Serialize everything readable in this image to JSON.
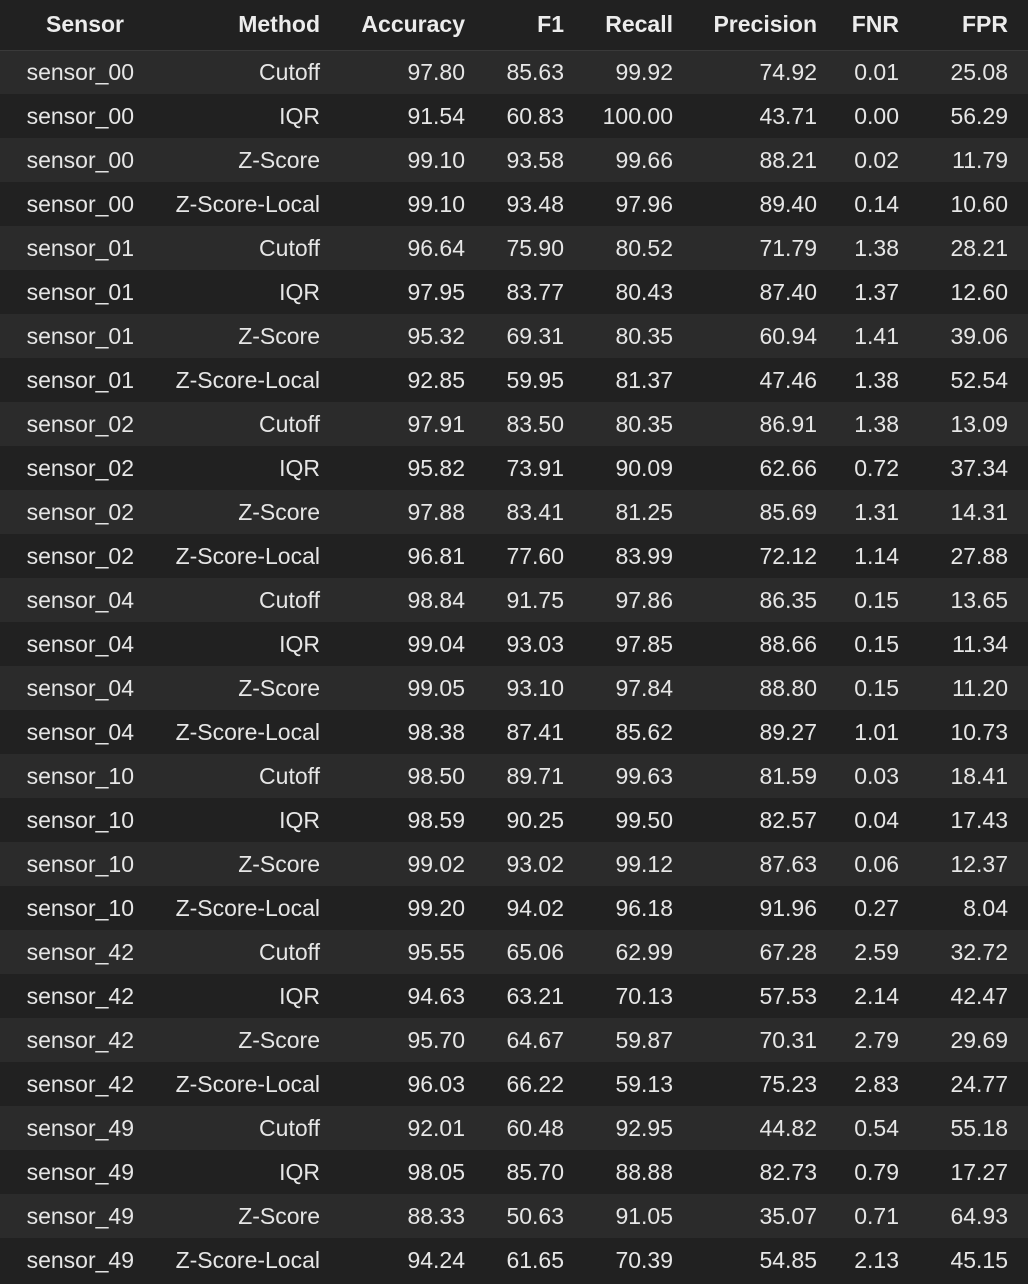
{
  "table": {
    "columns": [
      "Sensor",
      "Method",
      "Accuracy",
      "F1",
      "Recall",
      "Precision",
      "FNR",
      "FPR"
    ],
    "rows": [
      [
        "sensor_00",
        "Cutoff",
        "97.80",
        "85.63",
        "99.92",
        "74.92",
        "0.01",
        "25.08"
      ],
      [
        "sensor_00",
        "IQR",
        "91.54",
        "60.83",
        "100.00",
        "43.71",
        "0.00",
        "56.29"
      ],
      [
        "sensor_00",
        "Z-Score",
        "99.10",
        "93.58",
        "99.66",
        "88.21",
        "0.02",
        "11.79"
      ],
      [
        "sensor_00",
        "Z-Score-Local",
        "99.10",
        "93.48",
        "97.96",
        "89.40",
        "0.14",
        "10.60"
      ],
      [
        "sensor_01",
        "Cutoff",
        "96.64",
        "75.90",
        "80.52",
        "71.79",
        "1.38",
        "28.21"
      ],
      [
        "sensor_01",
        "IQR",
        "97.95",
        "83.77",
        "80.43",
        "87.40",
        "1.37",
        "12.60"
      ],
      [
        "sensor_01",
        "Z-Score",
        "95.32",
        "69.31",
        "80.35",
        "60.94",
        "1.41",
        "39.06"
      ],
      [
        "sensor_01",
        "Z-Score-Local",
        "92.85",
        "59.95",
        "81.37",
        "47.46",
        "1.38",
        "52.54"
      ],
      [
        "sensor_02",
        "Cutoff",
        "97.91",
        "83.50",
        "80.35",
        "86.91",
        "1.38",
        "13.09"
      ],
      [
        "sensor_02",
        "IQR",
        "95.82",
        "73.91",
        "90.09",
        "62.66",
        "0.72",
        "37.34"
      ],
      [
        "sensor_02",
        "Z-Score",
        "97.88",
        "83.41",
        "81.25",
        "85.69",
        "1.31",
        "14.31"
      ],
      [
        "sensor_02",
        "Z-Score-Local",
        "96.81",
        "77.60",
        "83.99",
        "72.12",
        "1.14",
        "27.88"
      ],
      [
        "sensor_04",
        "Cutoff",
        "98.84",
        "91.75",
        "97.86",
        "86.35",
        "0.15",
        "13.65"
      ],
      [
        "sensor_04",
        "IQR",
        "99.04",
        "93.03",
        "97.85",
        "88.66",
        "0.15",
        "11.34"
      ],
      [
        "sensor_04",
        "Z-Score",
        "99.05",
        "93.10",
        "97.84",
        "88.80",
        "0.15",
        "11.20"
      ],
      [
        "sensor_04",
        "Z-Score-Local",
        "98.38",
        "87.41",
        "85.62",
        "89.27",
        "1.01",
        "10.73"
      ],
      [
        "sensor_10",
        "Cutoff",
        "98.50",
        "89.71",
        "99.63",
        "81.59",
        "0.03",
        "18.41"
      ],
      [
        "sensor_10",
        "IQR",
        "98.59",
        "90.25",
        "99.50",
        "82.57",
        "0.04",
        "17.43"
      ],
      [
        "sensor_10",
        "Z-Score",
        "99.02",
        "93.02",
        "99.12",
        "87.63",
        "0.06",
        "12.37"
      ],
      [
        "sensor_10",
        "Z-Score-Local",
        "99.20",
        "94.02",
        "96.18",
        "91.96",
        "0.27",
        "8.04"
      ],
      [
        "sensor_42",
        "Cutoff",
        "95.55",
        "65.06",
        "62.99",
        "67.28",
        "2.59",
        "32.72"
      ],
      [
        "sensor_42",
        "IQR",
        "94.63",
        "63.21",
        "70.13",
        "57.53",
        "2.14",
        "42.47"
      ],
      [
        "sensor_42",
        "Z-Score",
        "95.70",
        "64.67",
        "59.87",
        "70.31",
        "2.79",
        "29.69"
      ],
      [
        "sensor_42",
        "Z-Score-Local",
        "96.03",
        "66.22",
        "59.13",
        "75.23",
        "2.83",
        "24.77"
      ],
      [
        "sensor_49",
        "Cutoff",
        "92.01",
        "60.48",
        "92.95",
        "44.82",
        "0.54",
        "55.18"
      ],
      [
        "sensor_49",
        "IQR",
        "98.05",
        "85.70",
        "88.88",
        "82.73",
        "0.79",
        "17.27"
      ],
      [
        "sensor_49",
        "Z-Score",
        "88.33",
        "50.63",
        "91.05",
        "35.07",
        "0.71",
        "64.93"
      ],
      [
        "sensor_49",
        "Z-Score-Local",
        "94.24",
        "61.65",
        "70.39",
        "54.85",
        "2.13",
        "45.15"
      ]
    ]
  },
  "colors": {
    "background": "#212121",
    "row_stripe": "#2b2b2b",
    "text": "#e6e6e6"
  }
}
